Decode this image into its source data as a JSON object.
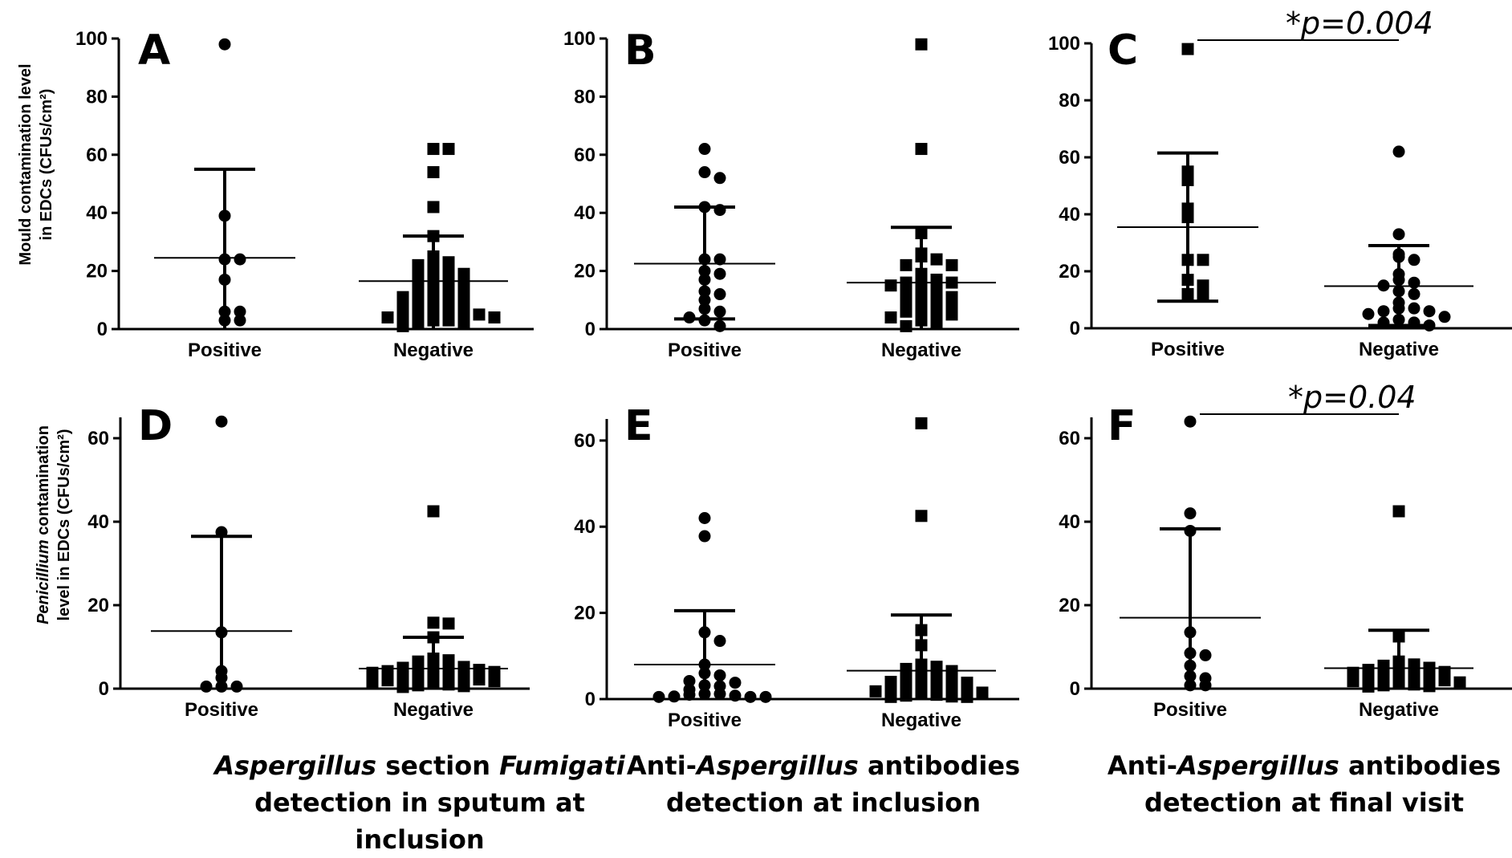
{
  "figure": {
    "ylabel_top_line1": "Mould contamination level",
    "ylabel_top_line2": "in EDCs (CFUs/cm²)",
    "ylabel_bottom_line1_italic": "Penicillium",
    "ylabel_bottom_line1_rest": " contamination",
    "ylabel_bottom_line2": "level in EDCs (CFUs/cm²)",
    "captions": [
      {
        "l1_italic1": "Aspergillus",
        "l1_mid": " section ",
        "l1_italic2": "Fumigati",
        "l2": "detection in sputum at inclusion"
      },
      {
        "l1_pre": "Anti-",
        "l1_italic": "Aspergillus",
        "l1_post": " antibodies",
        "l2": "detection at inclusion"
      },
      {
        "l1_pre": "Anti-",
        "l1_italic": "Aspergillus",
        "l1_post": " antibodies",
        "l2": "detection at final visit"
      }
    ]
  },
  "chart_data": [
    {
      "panel": "A",
      "type": "scatter",
      "ylim": [
        0,
        100
      ],
      "yticks": [
        0,
        20,
        40,
        60,
        80,
        100
      ],
      "categories": [
        "Positive",
        "Negative"
      ],
      "ylabel": "Mould contamination level in EDCs (CFUs/cm²)",
      "series": [
        {
          "marker": "circle",
          "mean": 24.5,
          "sd_low": 0,
          "sd_high": 55,
          "values": [
            98,
            39,
            24,
            24,
            17,
            6,
            6,
            3,
            3
          ]
        },
        {
          "marker": "square",
          "mean": 16.5,
          "sd_low": 0,
          "sd_high": 32,
          "values": [
            62,
            62,
            54,
            42,
            32,
            25,
            23,
            22,
            21,
            21,
            20,
            19,
            17,
            17,
            16,
            15,
            14,
            13,
            12,
            12,
            11,
            10,
            9,
            9,
            8,
            8,
            7,
            7,
            6,
            6,
            5,
            5,
            4,
            4,
            3,
            3,
            2,
            2,
            1
          ]
        }
      ]
    },
    {
      "panel": "B",
      "type": "scatter",
      "ylim": [
        0,
        100
      ],
      "yticks": [
        0,
        20,
        40,
        60,
        80,
        100
      ],
      "categories": [
        "Positive",
        "Negative"
      ],
      "series": [
        {
          "marker": "circle",
          "mean": 22.5,
          "sd_low": 3.5,
          "sd_high": 42,
          "values": [
            62,
            54,
            52,
            42,
            41,
            24,
            24,
            20,
            19,
            17,
            13,
            12,
            10,
            7,
            6,
            4,
            3,
            1
          ]
        },
        {
          "marker": "square",
          "mean": 16,
          "sd_low": 0,
          "sd_high": 35,
          "values": [
            98,
            62,
            33,
            26,
            25,
            24,
            22,
            22,
            19,
            18,
            17,
            16,
            16,
            15,
            14,
            13,
            12,
            11,
            10,
            9,
            8,
            8,
            7,
            6,
            6,
            5,
            4,
            3,
            2,
            1
          ]
        }
      ]
    },
    {
      "panel": "C",
      "type": "scatter",
      "ylim": [
        0,
        100
      ],
      "yticks": [
        0,
        20,
        40,
        60,
        80,
        100
      ],
      "categories": [
        "Positive",
        "Negative"
      ],
      "annotation": "*p=0.004",
      "series": [
        {
          "marker": "square",
          "mean": 35.5,
          "sd_low": 9.5,
          "sd_high": 61.5,
          "values": [
            98,
            55,
            52,
            42,
            39,
            24,
            24,
            17,
            15,
            12,
            12
          ]
        },
        {
          "marker": "circle",
          "mean": 14.8,
          "sd_low": 1,
          "sd_high": 29,
          "values": [
            62,
            33,
            26,
            25,
            24,
            19,
            17,
            16,
            15,
            13,
            12,
            9,
            7,
            7,
            6,
            6,
            5,
            4,
            3,
            2,
            2,
            1
          ]
        }
      ]
    },
    {
      "panel": "D",
      "type": "scatter",
      "ylim": [
        0,
        65
      ],
      "yticks": [
        0,
        20,
        40,
        60
      ],
      "categories": [
        "Positive",
        "Negative"
      ],
      "ylabel": "Penicillium contamination level in EDCs (CFUs/cm²)",
      "series": [
        {
          "marker": "circle",
          "mean": 13.8,
          "sd_low": 0,
          "sd_high": 36.5,
          "values": [
            64,
            37.5,
            13.5,
            4.2,
            2.6,
            0.5,
            0.5,
            0.5
          ]
        },
        {
          "marker": "square",
          "mean": 4.8,
          "sd_low": 0,
          "sd_high": 12.3,
          "values": [
            42.5,
            15.8,
            15.6,
            12.3,
            7.2,
            6.8,
            6.5,
            6.2,
            5.8,
            5.5,
            5.2,
            5,
            4.5,
            4.2,
            4,
            3.8,
            3.5,
            3.2,
            3,
            2.8,
            2.5,
            2.2,
            2,
            1.8,
            1.5,
            1.2,
            1,
            0.8,
            0.6,
            0.4
          ]
        }
      ]
    },
    {
      "panel": "E",
      "type": "scatter",
      "ylim": [
        0,
        65
      ],
      "yticks": [
        0,
        20,
        40,
        60
      ],
      "categories": [
        "Positive",
        "Negative"
      ],
      "series": [
        {
          "marker": "circle",
          "mean": 8,
          "sd_low": 0,
          "sd_high": 20.5,
          "values": [
            42,
            37.8,
            15.5,
            13.5,
            8,
            6,
            5.5,
            4.2,
            3.8,
            3.2,
            3,
            2.2,
            1.2,
            1.2,
            1,
            0.8,
            0.6,
            0.5,
            0.5,
            0.5
          ]
        },
        {
          "marker": "square",
          "mean": 6.6,
          "sd_low": 0,
          "sd_high": 19.5,
          "values": [
            64,
            42.5,
            16,
            12.5,
            8,
            7.5,
            7,
            6.5,
            6,
            5.5,
            5,
            4.5,
            4,
            3.8,
            3.5,
            3,
            2.8,
            2.5,
            2.2,
            2,
            1.8,
            1.5,
            1.2,
            1,
            0.8,
            0.6,
            0.5,
            0.5
          ]
        }
      ]
    },
    {
      "panel": "F",
      "type": "scatter",
      "ylim": [
        0,
        65
      ],
      "yticks": [
        0,
        20,
        40,
        60
      ],
      "categories": [
        "Positive",
        "Negative"
      ],
      "annotation": "*p=0.04",
      "series": [
        {
          "marker": "circle",
          "mean": 17,
          "sd_low": 0,
          "sd_high": 38.3,
          "values": [
            64,
            42,
            37.8,
            13.5,
            8.5,
            8,
            5.5,
            3,
            2.5,
            0.8,
            0.8
          ]
        },
        {
          "marker": "square",
          "mean": 4.9,
          "sd_low": 0,
          "sd_high": 14,
          "values": [
            42.5,
            12.5,
            6.5,
            6,
            5.8,
            5.5,
            5,
            4.5,
            4,
            3.8,
            3.5,
            3,
            2.8,
            2.5,
            2.2,
            2,
            1.8,
            1.5,
            1.2,
            1,
            0.8,
            0.6,
            0.5
          ]
        }
      ]
    }
  ]
}
